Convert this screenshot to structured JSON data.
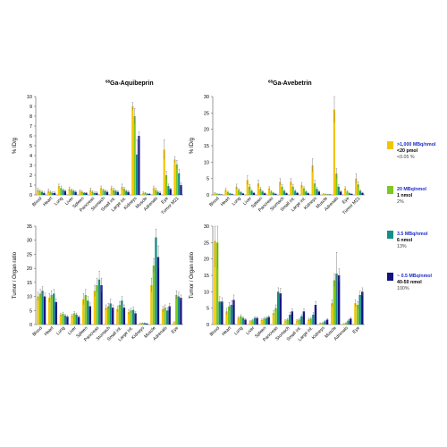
{
  "colors": [
    "#f5c400",
    "#7ec81f",
    "#138f86",
    "#13137f"
  ],
  "legend": [
    {
      "line1": ">1,000 MBq/nmol",
      "line2": "<20 pmol",
      "line3": "<0.05 %"
    },
    {
      "line1": "20 MBq/nmol",
      "line2": "1 nmol",
      "line3": "2%"
    },
    {
      "line1": "3.5 MBq/nmol",
      "line2": "6 nmol",
      "line3": "13%"
    },
    {
      "line1": "~ 0.5 MBq/nmol",
      "line2": "40-50 nmol",
      "line3": "100%"
    }
  ],
  "chart_data": [
    {
      "type": "bar",
      "title_sup": "68",
      "title": "Ga-Aquibeprin",
      "ylabel": "% ID/g",
      "ylim": [
        0,
        10
      ],
      "yticks": [
        0,
        1,
        2,
        3,
        4,
        5,
        6,
        7,
        8,
        9,
        10
      ],
      "categories": [
        "Blood",
        "Heart",
        "Lung",
        "Liver",
        "Spleen",
        "Pancreas",
        "Stomach",
        "Small int.",
        "Large int.",
        "Kidneys",
        "Muscle",
        "Adrenals",
        "Eye",
        "Tumor M21"
      ],
      "series": [
        {
          "values": [
            0.5,
            0.4,
            0.9,
            0.6,
            0.4,
            0.5,
            0.7,
            0.7,
            0.8,
            9.0,
            0.2,
            0.7,
            4.6,
            3.6
          ],
          "errors": [
            0.2,
            0.2,
            0.2,
            0.2,
            0.1,
            0.2,
            0.2,
            0.2,
            0.3,
            0.4,
            0.1,
            0.2,
            1.0,
            0.3
          ]
        },
        {
          "values": [
            0.4,
            0.3,
            0.7,
            0.5,
            0.3,
            0.3,
            0.5,
            0.5,
            0.6,
            8.0,
            0.2,
            0.5,
            2.0,
            3.1
          ],
          "errors": [
            0.1,
            0.1,
            0.2,
            0.1,
            0.1,
            0.1,
            0.1,
            0.2,
            0.2,
            0.8,
            0.05,
            0.2,
            0.4,
            0.4
          ]
        },
        {
          "values": [
            0.3,
            0.2,
            0.5,
            0.4,
            0.2,
            0.2,
            0.4,
            0.4,
            0.4,
            4.1,
            0.1,
            0.3,
            0.9,
            2.2
          ],
          "errors": [
            0.1,
            0.1,
            0.1,
            0.1,
            0.05,
            0.1,
            0.1,
            0.1,
            0.1,
            1.5,
            0.05,
            0.1,
            0.2,
            0.4
          ]
        },
        {
          "values": [
            0.2,
            0.2,
            0.4,
            0.3,
            0.2,
            0.2,
            0.3,
            0.3,
            0.3,
            6.0,
            0.1,
            0.2,
            0.6,
            1.0
          ],
          "errors": [
            0.1,
            0.1,
            0.1,
            0.1,
            0.05,
            0.1,
            0.1,
            0.1,
            0.1,
            0.4,
            0.05,
            0.1,
            0.1,
            0.2
          ]
        }
      ]
    },
    {
      "type": "bar",
      "title_sup": "68",
      "title": "Ga-Avebetrin",
      "ylabel": "% ID/g",
      "ylim": [
        0,
        30
      ],
      "yticks": [
        0,
        5,
        10,
        15,
        20,
        25,
        30
      ],
      "categories": [
        "Blood",
        "Heart",
        "Lung",
        "Liver",
        "Spleen",
        "Pancreas",
        "Stomach",
        "Small int.",
        "Large int.",
        "Kidneys",
        "Muscle",
        "Adrenals",
        "Eye",
        "Tumor M21"
      ],
      "series": [
        {
          "values": [
            0.5,
            1.5,
            2.5,
            4.5,
            3.5,
            2.0,
            4.0,
            4.0,
            3.0,
            9.0,
            0.3,
            26.0,
            2.0,
            5.0
          ],
          "errors": [
            0.2,
            0.5,
            0.8,
            1.3,
            1.0,
            0.5,
            1.0,
            1.0,
            0.8,
            2.0,
            0.1,
            4.0,
            0.5,
            1.5
          ]
        },
        {
          "values": [
            0.3,
            0.8,
            1.5,
            2.5,
            1.8,
            1.0,
            2.5,
            2.5,
            2.0,
            3.5,
            0.2,
            6.5,
            1.0,
            3.2
          ],
          "errors": [
            0.1,
            0.3,
            0.4,
            0.7,
            0.5,
            0.3,
            0.6,
            0.6,
            0.5,
            1.0,
            0.1,
            1.5,
            0.3,
            0.8
          ]
        },
        {
          "values": [
            0.2,
            0.4,
            0.8,
            1.2,
            1.0,
            0.6,
            1.2,
            1.2,
            1.0,
            1.8,
            0.1,
            2.5,
            0.5,
            1.2
          ],
          "errors": [
            0.1,
            0.1,
            0.2,
            0.3,
            0.3,
            0.2,
            0.3,
            0.3,
            0.3,
            0.5,
            0.05,
            0.6,
            0.1,
            0.3
          ]
        },
        {
          "values": [
            0.1,
            0.2,
            0.4,
            0.6,
            0.5,
            0.3,
            0.5,
            0.6,
            0.5,
            1.0,
            0.1,
            1.0,
            0.3,
            0.6
          ],
          "errors": [
            0.05,
            0.1,
            0.1,
            0.1,
            0.1,
            0.1,
            0.1,
            0.1,
            0.1,
            0.2,
            0.05,
            0.3,
            0.1,
            0.2
          ]
        }
      ]
    },
    {
      "type": "bar",
      "ylabel": "Tumor / Organ ratio",
      "ylim": [
        0,
        35
      ],
      "yticks": [
        0,
        5,
        10,
        15,
        20,
        25,
        30,
        35
      ],
      "categories": [
        "Blood",
        "Heart",
        "Lung",
        "Liver",
        "Spleen",
        "Pancreas",
        "Stomach",
        "Small int.",
        "Large int.",
        "Kidneys",
        "Muscle",
        "Adrenals",
        "Eye"
      ],
      "series": [
        {
          "values": [
            10,
            9.5,
            3.5,
            3.2,
            9.0,
            12.0,
            6.0,
            5.5,
            4.5,
            0.4,
            14.0,
            5.5,
            0.8
          ],
          "errors": [
            1.5,
            1.5,
            0.5,
            0.5,
            2.0,
            2.0,
            1.0,
            1.0,
            0.8,
            0.1,
            2.5,
            1.0,
            0.2
          ]
        },
        {
          "values": [
            11,
            10.5,
            3.8,
            4.0,
            10.5,
            14.0,
            6.5,
            7.0,
            5.0,
            0.5,
            21.0,
            6.0,
            10.5
          ],
          "errors": [
            1.5,
            1.5,
            0.6,
            0.6,
            2.0,
            2.5,
            1.0,
            1.2,
            0.8,
            0.1,
            2.5,
            1.0,
            1.5
          ]
        },
        {
          "values": [
            12,
            11.0,
            3.2,
            3.5,
            8.5,
            16.0,
            7.5,
            8.5,
            5.2,
            0.5,
            31.0,
            5.0,
            10.0
          ],
          "errors": [
            1.5,
            1.5,
            0.5,
            0.6,
            1.5,
            3.0,
            1.5,
            1.5,
            1.0,
            0.1,
            3.0,
            1.0,
            1.5
          ]
        },
        {
          "values": [
            10,
            8.0,
            2.8,
            2.7,
            6.5,
            14.0,
            6.0,
            6.0,
            4.0,
            0.3,
            24.0,
            6.5,
            9.5
          ],
          "errors": [
            1.2,
            1.2,
            0.4,
            0.4,
            1.2,
            2.5,
            1.0,
            1.0,
            0.6,
            0.1,
            4.0,
            1.0,
            1.0
          ]
        }
      ]
    },
    {
      "type": "bar",
      "ylabel": "Tumor / Organ ratio",
      "ylim": [
        0,
        30
      ],
      "yticks": [
        0,
        5,
        10,
        15,
        20,
        25,
        30
      ],
      "categories": [
        "Blood",
        "Heart",
        "Lung",
        "Liver",
        "Spleen",
        "Pancreas",
        "Stomach",
        "Small int.",
        "Large int.",
        "Kidneys",
        "Muscle",
        "Adrenals",
        "Eye"
      ],
      "series": [
        {
          "values": [
            25.5,
            4.0,
            2.0,
            1.0,
            1.4,
            3.5,
            1.2,
            1.2,
            1.5,
            0.4,
            6.5,
            0.2,
            6.5
          ],
          "errors": [
            8.0,
            1.0,
            0.4,
            0.2,
            0.3,
            0.7,
            0.3,
            0.3,
            0.4,
            0.1,
            1.0,
            0.1,
            1.0
          ]
        },
        {
          "values": [
            25.0,
            5.5,
            2.5,
            1.3,
            1.8,
            5.0,
            1.5,
            1.5,
            1.8,
            0.5,
            13.5,
            0.5,
            6.0
          ],
          "errors": [
            8.0,
            1.2,
            0.5,
            0.3,
            0.4,
            1.0,
            0.3,
            0.3,
            0.4,
            0.1,
            2.0,
            0.1,
            1.0
          ]
        },
        {
          "values": [
            7.0,
            6.0,
            2.0,
            2.0,
            2.0,
            10.0,
            3.0,
            2.5,
            3.0,
            1.0,
            15.5,
            1.2,
            9.0
          ],
          "errors": [
            1.5,
            1.2,
            0.4,
            0.4,
            0.4,
            1.2,
            0.6,
            0.5,
            0.6,
            0.2,
            6.5,
            0.3,
            1.2
          ]
        },
        {
          "values": [
            7.0,
            7.5,
            1.5,
            2.0,
            2.3,
            9.5,
            4.0,
            4.0,
            6.0,
            1.5,
            15.0,
            1.8,
            10.0
          ],
          "errors": [
            1.2,
            1.5,
            0.3,
            0.4,
            0.4,
            1.5,
            0.8,
            0.8,
            1.0,
            0.3,
            2.0,
            0.4,
            1.2
          ]
        }
      ]
    }
  ]
}
